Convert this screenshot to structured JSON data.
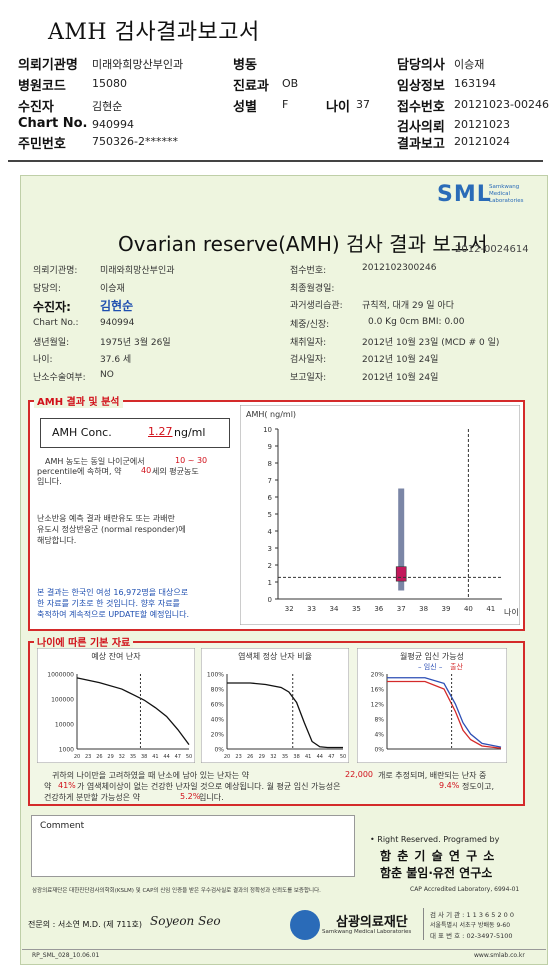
{
  "top": {
    "title": "AMH 검사결과보고서",
    "rows": [
      {
        "label": "의뢰기관명",
        "value": "미래와희망산부인과"
      },
      {
        "label": "병원코드",
        "value": "15080"
      },
      {
        "label": "수진자",
        "value": "김현순"
      },
      {
        "label": "Chart No.",
        "value": "940994"
      },
      {
        "label": "주민번호",
        "value": "750326-2******"
      }
    ],
    "mid": [
      {
        "label": "병동",
        "value": ""
      },
      {
        "label": "진료과",
        "value": "OB"
      },
      {
        "label": "성별",
        "value": "F"
      }
    ],
    "age_label": "나이",
    "age_value": "37",
    "right": [
      {
        "label": "담당의사",
        "value": "이승재"
      },
      {
        "label": "임상정보",
        "value": "163194"
      },
      {
        "label": "접수번호",
        "value": "20121023-00246"
      },
      {
        "label": "검사의뢰",
        "value": "20121023"
      },
      {
        "label": "결과보고",
        "value": "20121024"
      }
    ]
  },
  "sheet": {
    "logo": "SML",
    "logo_sub": "Samkwang Medical Laboratories",
    "title": "Ovarian reserve(AMH) 검사 결과 보고서",
    "report_no": "2012-0024614",
    "left_fields": [
      {
        "label": "의뢰기관명:",
        "value": "미래와희망산부인과"
      },
      {
        "label": "담당의:",
        "value": "이승재"
      },
      {
        "label": "수진자:",
        "value": "김현순"
      },
      {
        "label": "Chart No.:",
        "value": "940994"
      },
      {
        "label": "생년월일:",
        "value": "1975년 3월 26일"
      },
      {
        "label": "나이:",
        "value": "37.6 세"
      },
      {
        "label": "난소수술여부:",
        "value": "NO"
      }
    ],
    "right_fields": [
      {
        "label": "접수번호:",
        "value": "2012102300246"
      },
      {
        "label": "최종월경일:",
        "value": ""
      },
      {
        "label": "과거생리습관:",
        "value": "규칙적,  대개   29  일 아다"
      },
      {
        "label": "체중/신장:",
        "value": "0.0 Kg       0cm    BMI:    0.00"
      },
      {
        "label": "채취일자:",
        "value": "2012년 10월 23일  (MCD # 0 일)"
      },
      {
        "label": "검사일자:",
        "value": "2012년 10월 24일"
      },
      {
        "label": "보고일자:",
        "value": "2012년 10월 24일"
      }
    ]
  },
  "amh": {
    "section_title": "AMH 결과 및 분석",
    "conc_label": "AMH Conc.",
    "conc_value": "1.27",
    "conc_unit": "ng/ml",
    "para1_a": "AMH 농도는 동일 나이군에서",
    "para1_range": "10 ~ 30",
    "para1_b": "percentile에 속하며, 약",
    "para1_age": "40",
    "para1_c": "세의 평균농도",
    "para1_d": "입니다.",
    "para2": [
      "난소반응 예측 결과 배란유도 또는 과배란",
      "유도시 정상반응군 (normal responder)에",
      "해당합니다."
    ],
    "para3": [
      "본 결과는 한국인 여성 16,972명을 대상으로",
      "한 자료를 기초로 한 것입니다. 향후 자료를",
      "축적하여 계속적으로 UPDATE할 예정입니다."
    ]
  },
  "chart_data": [
    {
      "type": "bar",
      "title": "",
      "ylabel": "AMH( ng/ml)",
      "xlabel": "나이",
      "x_ticks": [
        32,
        33,
        34,
        35,
        36,
        37,
        38,
        39,
        40,
        41
      ],
      "y_ticks": [
        0,
        1,
        2,
        3,
        4,
        5,
        6,
        7,
        8,
        9,
        10
      ],
      "ylim": [
        0,
        10
      ],
      "xlim": [
        31.5,
        41.5
      ],
      "range_bar": {
        "x": 37,
        "low": 0.5,
        "high": 6.5
      },
      "iqr_box": {
        "x": 37,
        "low": 1.05,
        "high": 1.9
      },
      "patient_value": 1.27,
      "dashed_vline_x": 40,
      "colors": {
        "range_bar": "#7b86a6",
        "box": "#c2185b"
      }
    },
    {
      "type": "line",
      "title": "예상 잔여 난자",
      "x_ticks": [
        20,
        23,
        26,
        29,
        32,
        35,
        38,
        41,
        44,
        47,
        50
      ],
      "y_ticks": [
        "1000000",
        "100000",
        "10000",
        "1000"
      ],
      "scale": "log",
      "x": [
        20,
        26,
        32,
        35,
        38,
        41,
        44,
        47,
        50
      ],
      "y": [
        700000,
        450000,
        250000,
        150000,
        90000,
        45000,
        20000,
        6000,
        1500
      ],
      "dashed_vline_x": 37
    },
    {
      "type": "line",
      "title": "염색체 정상 난자 비율",
      "x_ticks": [
        20,
        23,
        26,
        29,
        32,
        35,
        38,
        41,
        44,
        47,
        50
      ],
      "y_ticks": [
        "100%",
        "80%",
        "60%",
        "40%",
        "20%",
        "0%"
      ],
      "x": [
        20,
        26,
        30,
        34,
        36,
        38,
        40,
        42,
        44,
        46,
        50
      ],
      "y": [
        88,
        88,
        86,
        82,
        76,
        62,
        35,
        10,
        3,
        2,
        2
      ],
      "dashed_vline_x": 37
    },
    {
      "type": "line",
      "title": "월평균 임신 가능성",
      "legend": [
        "임신",
        "출산"
      ],
      "y_ticks": [
        "20%",
        "16%",
        "12%",
        "8%",
        "4%",
        "0%"
      ],
      "series": [
        {
          "name": "임신",
          "color": "#2d4fb5",
          "x": [
            20,
            30,
            35,
            38,
            40,
            42,
            45,
            50
          ],
          "y": [
            19,
            19,
            17.5,
            12,
            7,
            4,
            1.5,
            0.5
          ]
        },
        {
          "name": "출산",
          "color": "#d42a2a",
          "x": [
            20,
            30,
            35,
            38,
            40,
            42,
            45,
            50
          ],
          "y": [
            18,
            18,
            16,
            10,
            5,
            2.5,
            0.8,
            0.2
          ]
        }
      ],
      "dashed_vline_x": 37
    }
  ],
  "age_section": {
    "title": "나이에 따른 기본 자료",
    "line1_a": "귀하의 나이만을 고려하였을 때 난소에 남아 있는 난자는 약",
    "line1_num": "22,000",
    "line1_b": "개로 추정되며, 배란되는 난자 중",
    "line2_a": "약",
    "line2_num": "41%",
    "line2_b": "가 염색체이상이 없는 건강한 난자일 것으로 예상됩니다. 월 평균 임신 가능성은",
    "line2_num2": "9.4%",
    "line2_c": "정도이고,",
    "line3_a": "건강하게 분만할 가능성은 약",
    "line3_num": "5.2%",
    "line3_b": "입니다."
  },
  "comment_label": "Comment",
  "rights": "• Right Reserved. Programed by",
  "lab1": "함 춘  기 술  연 구 소",
  "lab2": "함춘 불임·유전 연구소",
  "footer": {
    "cert_note": "삼광의료재단은 대한진단검사의학회(KSLM) 및 CAP의 신임 인증을 받은 우수검사실로 결과의 정확성과 신뢰도를 보증합니다.",
    "cap": "CAP  Accredited  Laboratory,  6994-01",
    "signer": "전문의 : 서소연 M.D. (제 711호)",
    "signature": "Soyeon Seo",
    "foundation": "삼광의료재단",
    "foundation_en": "Samkwang Medical Laboratories",
    "contact": [
      "검 사 기 관 : 1 1 3 6 5 2 0 0",
      "서울특별시 서초구 방배동 9-60",
      "대 표 번 호 : 02-3497-5100"
    ],
    "form_code": "RP_SML_028_10.06.01",
    "site": "www.smlab.co.kr"
  }
}
